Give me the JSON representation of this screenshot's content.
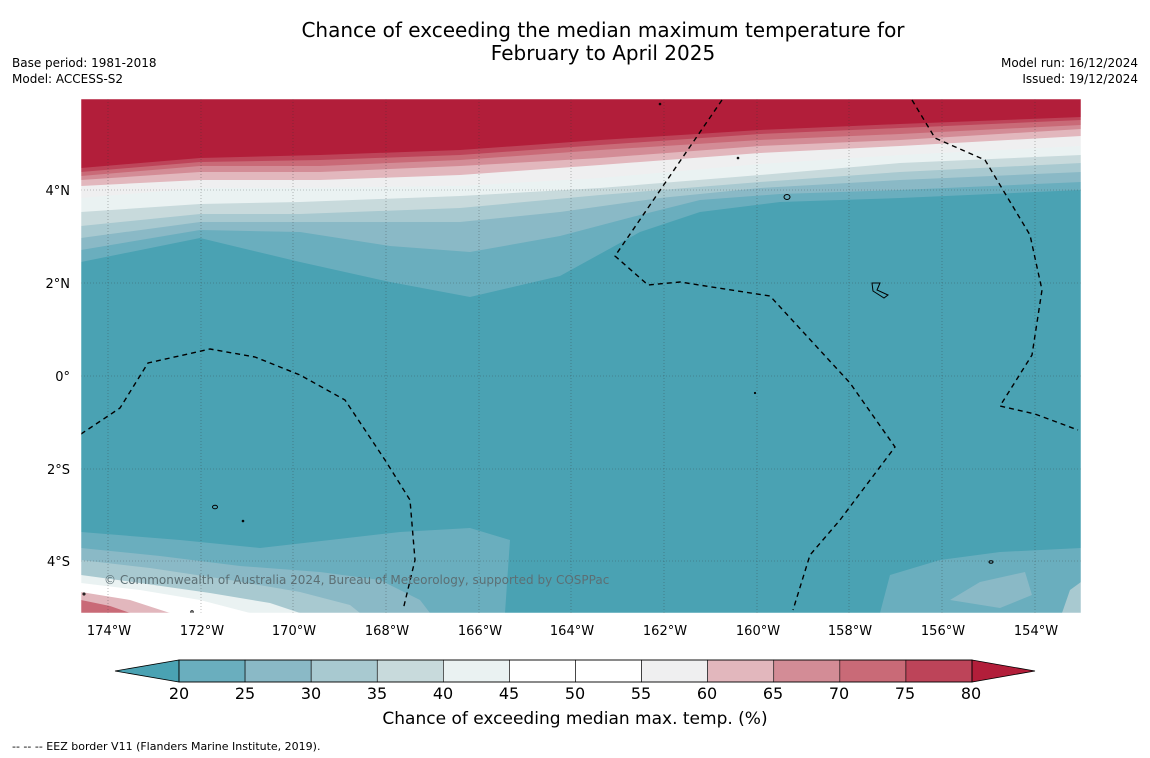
{
  "title": {
    "line1": "Chance of exceeding the median maximum temperature for",
    "line2": "February to April 2025"
  },
  "meta": {
    "base_period": "Base period: 1981-2018",
    "model": "Model: ACCESS-S2",
    "model_run": "Model run: 16/12/2024",
    "issued": "Issued: 19/12/2024"
  },
  "map": {
    "lon_ticks": [
      "174°W",
      "172°W",
      "170°W",
      "168°W",
      "166°W",
      "164°W",
      "162°W",
      "160°W",
      "158°W",
      "156°W",
      "154°W"
    ],
    "lat_ticks": [
      "4°N",
      "2°N",
      "0°",
      "2°S",
      "4°S"
    ],
    "copyright": "© Commonwealth of Australia 2024, Bureau of Meteorology, supported by COSPPac"
  },
  "colorbar": {
    "ticks": [
      "20",
      "25",
      "30",
      "35",
      "40",
      "45",
      "50",
      "55",
      "60",
      "65",
      "70",
      "75",
      "80"
    ],
    "colors": [
      "#4aa2b3",
      "#6aaebe",
      "#8ab9c6",
      "#a8c9d0",
      "#c8dadc",
      "#eaf2f2",
      "#ffffff",
      "#ffffff",
      "#efeff0",
      "#e2b7bd",
      "#d38c96",
      "#c96a77",
      "#bd4459",
      "#b21e3a"
    ],
    "label": "Chance of exceeding median max. temp. (%)"
  },
  "footnote": "--  --  -- EEZ border V11 (Flanders Marine Institute, 2019)."
}
